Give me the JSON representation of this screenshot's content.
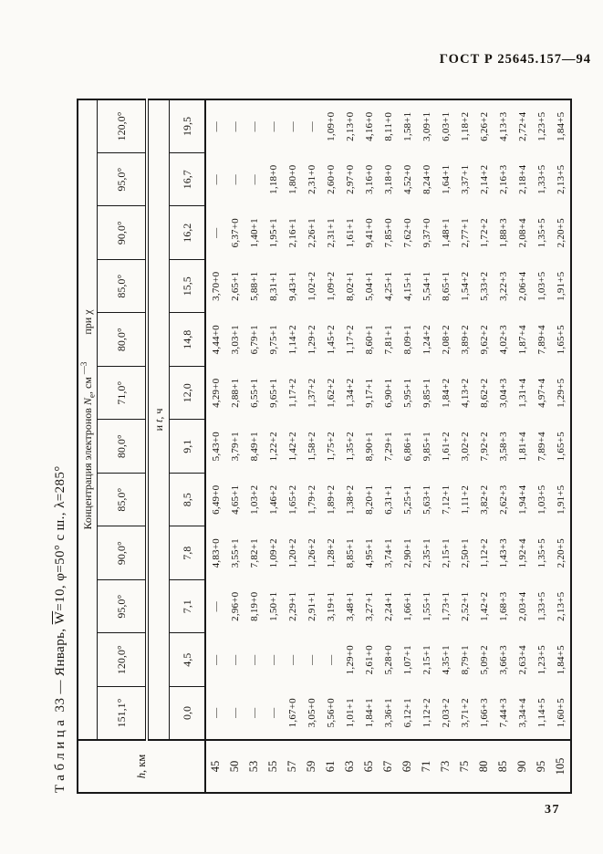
{
  "page": {
    "doc_header": "ГОСТ Р 25645.157—94",
    "page_number": "37"
  },
  "table": {
    "title": {
      "label": "Таблица",
      "rest_1": " 33 — Январь, ",
      "w": "W",
      "rest_2": "=10, φ=50° с ш., λ=285°"
    },
    "corner": {
      "h": "h",
      "rest": ", км"
    },
    "group_header": {
      "p1": "Концентрация электронов ",
      "n": "N",
      "n_sub": "е",
      "p2": ", см ",
      "exp": "—3",
      "p3": "при χ"
    },
    "sub_header": {
      "p1": "и ",
      "t": "t",
      "p2": ", ч"
    },
    "chi_values": [
      "151,1°",
      "120,0°",
      "95,0°",
      "90,0°",
      "85,0°",
      "80,0°",
      "71,0°",
      "80,0°",
      "85,0°",
      "90,0°",
      "95,0°",
      "120,0°"
    ],
    "t_values": [
      "0,0",
      "4,5",
      "7,1",
      "7,8",
      "8,5",
      "9,1",
      "12,0",
      "14,8",
      "15,5",
      "16,2",
      "16,7",
      "19,5"
    ],
    "h_values": [
      "45",
      "50",
      "53",
      "55",
      "57",
      "59",
      "61",
      "63",
      "65",
      "67",
      "69",
      "71",
      "73",
      "75",
      "80",
      "85",
      "90",
      "95",
      "105"
    ],
    "rows": [
      [
        "—",
        "—",
        "—",
        "4,83+0",
        "6,49+0",
        "5,43+0",
        "4,29+0",
        "4,44+0",
        "3,70+0",
        "—",
        "—",
        "—"
      ],
      [
        "—",
        "—",
        "2,96+0",
        "3,55+1",
        "4,65+1",
        "3,79+1",
        "2,88+1",
        "3,03+1",
        "2,65+1",
        "6,37+0",
        "—",
        "—"
      ],
      [
        "—",
        "—",
        "8,19+0",
        "7,82+1",
        "1,03+2",
        "8,49+1",
        "6,55+1",
        "6,79+1",
        "5,88+1",
        "1,40+1",
        "—",
        "—"
      ],
      [
        "—",
        "—",
        "1,50+1",
        "1,09+2",
        "1,46+2",
        "1,22+2",
        "9,65+1",
        "9,75+1",
        "8,31+1",
        "1,95+1",
        "1,18+0",
        "—"
      ],
      [
        "1,67+0",
        "—",
        "2,29+1",
        "1,20+2",
        "1,65+2",
        "1,42+2",
        "1,17+2",
        "1,14+2",
        "9,43+1",
        "2,16+1",
        "1,80+0",
        "—"
      ],
      [
        "3,05+0",
        "—",
        "2,91+1",
        "1,26+2",
        "1,79+2",
        "1,58+2",
        "1,37+2",
        "1,29+2",
        "1,02+2",
        "2,26+1",
        "2,31+0",
        "—"
      ],
      [
        "5,56+0",
        "—",
        "3,19+1",
        "1,28+2",
        "1,89+2",
        "1,75+2",
        "1,62+2",
        "1,45+2",
        "1,09+2",
        "2,31+1",
        "2,60+0",
        "1,09+0"
      ],
      [
        "1,01+1",
        "1,29+0",
        "3,48+1",
        "8,85+1",
        "1,38+2",
        "1,35+2",
        "1,34+2",
        "1,17+2",
        "8,02+1",
        "1,61+1",
        "2,97+0",
        "2,13+0"
      ],
      [
        "1,84+1",
        "2,61+0",
        "3,27+1",
        "4,95+1",
        "8,20+1",
        "8,90+1",
        "9,17+1",
        "8,60+1",
        "5,04+1",
        "9,41+0",
        "3,16+0",
        "4,16+0"
      ],
      [
        "3,36+1",
        "5,28+0",
        "2,24+1",
        "3,74+1",
        "6,31+1",
        "7,29+1",
        "6,90+1",
        "7,81+1",
        "4,25+1",
        "7,85+0",
        "3,18+0",
        "8,11+0"
      ],
      [
        "6,12+1",
        "1,07+1",
        "1,66+1",
        "2,90+1",
        "5,25+1",
        "6,86+1",
        "5,95+1",
        "8,09+1",
        "4,15+1",
        "7,62+0",
        "4,52+0",
        "1,58+1"
      ],
      [
        "1,12+2",
        "2,15+1",
        "1,55+1",
        "2,35+1",
        "5,63+1",
        "9,85+1",
        "9,85+1",
        "1,24+2",
        "5,54+1",
        "9,37+0",
        "8,24+0",
        "3,09+1"
      ],
      [
        "2,03+2",
        "4,35+1",
        "1,73+1",
        "2,15+1",
        "7,12+1",
        "1,61+2",
        "1,84+2",
        "2,08+2",
        "8,65+1",
        "1,48+1",
        "1,64+1",
        "6,03+1"
      ],
      [
        "3,71+2",
        "8,79+1",
        "2,52+1",
        "2,50+1",
        "1,11+2",
        "3,02+2",
        "4,13+2",
        "3,89+2",
        "1,54+2",
        "2,77+1",
        "3,37+1",
        "1,18+2"
      ],
      [
        "1,66+3",
        "5,09+2",
        "1,42+2",
        "1,12+2",
        "3,82+2",
        "7,92+2",
        "8,62+2",
        "9,62+2",
        "5,33+2",
        "1,72+2",
        "2,14+2",
        "6,26+2"
      ],
      [
        "7,44+3",
        "3,66+3",
        "1,68+3",
        "1,43+3",
        "2,62+3",
        "3,58+3",
        "3,04+3",
        "4,02+3",
        "3,22+3",
        "1,88+3",
        "2,16+3",
        "4,13+3"
      ],
      [
        "3,34+4",
        "2,63+4",
        "2,03+4",
        "1,92+4",
        "1,94+4",
        "1,81+4",
        "1,31+4",
        "1,87+4",
        "2,06+4",
        "2,08+4",
        "2,18+4",
        "2,72+4"
      ],
      [
        "1,14+5",
        "1,23+5",
        "1,33+5",
        "1,35+5",
        "1,03+5",
        "7,89+4",
        "4,97+4",
        "7,89+4",
        "1,03+5",
        "1,35+5",
        "1,33+5",
        "1,23+5"
      ],
      [
        "1,60+5",
        "1,84+5",
        "2,13+5",
        "2,20+5",
        "1,91+5",
        "1,65+5",
        "1,29+5",
        "1,65+5",
        "1,91+5",
        "2,20+5",
        "2,13+5",
        "1,84+5"
      ]
    ]
  }
}
